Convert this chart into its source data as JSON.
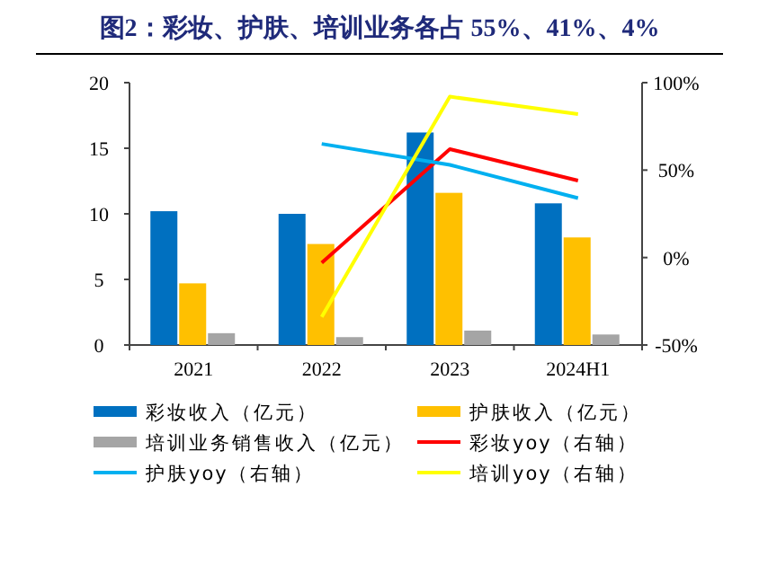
{
  "chart_data": {
    "type": "bar",
    "title": "图2：彩妆、护肤、培训业务各占 55%、41%、4%",
    "categories": [
      "2021",
      "2022",
      "2023",
      "2024H1"
    ],
    "series": [
      {
        "name": "彩妆收入（亿元）",
        "color": "#0070c0",
        "values": [
          10.2,
          10.0,
          16.2,
          10.8
        ]
      },
      {
        "name": "护肤收入（亿元）",
        "color": "#ffc000",
        "values": [
          4.7,
          7.7,
          11.6,
          8.2
        ]
      },
      {
        "name": "培训业务销售收入（亿元）",
        "color": "#a5a5a5",
        "values": [
          0.9,
          0.6,
          1.1,
          0.8
        ]
      },
      {
        "name": "彩妆yoy（右轴）",
        "type": "line",
        "axis": "y2",
        "color": "#ff0000",
        "values": [
          null,
          -3,
          62,
          44
        ]
      },
      {
        "name": "护肤yoy（右轴）",
        "type": "line",
        "axis": "y2",
        "color": "#00b0f0",
        "values": [
          null,
          65,
          53,
          34
        ]
      },
      {
        "name": "培训yoy（右轴）",
        "type": "line",
        "axis": "y2",
        "color": "#ffff00",
        "values": [
          null,
          -34,
          92,
          82
        ]
      }
    ],
    "ylim": [
      0,
      20
    ],
    "yticks": [
      0,
      5,
      10,
      15,
      20
    ],
    "y2lim": [
      -50,
      100
    ],
    "y2ticks": [
      {
        "value": -50,
        "label": "-50%"
      },
      {
        "value": 0,
        "label": "0%"
      },
      {
        "value": 50,
        "label": "50%"
      },
      {
        "value": 100,
        "label": "100%"
      }
    ],
    "grid": false,
    "legend": "bottom"
  }
}
